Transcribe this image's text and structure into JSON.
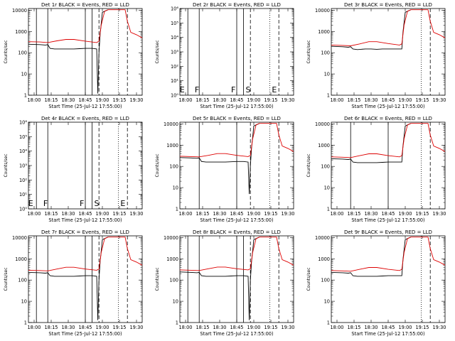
{
  "chart_data": [
    {
      "type": "line",
      "title": "Det 1r  BLACK = Events, RED = LLD",
      "xlabel": "Start Time (25-Jul-12 17:55:00)",
      "ylabel": "Counts/sec",
      "xlim": [
        "17:55",
        "19:35"
      ],
      "ylim": [
        1,
        12000
      ],
      "yscale": "log",
      "xticks": [
        "18:00",
        "18:15",
        "18:30",
        "18:45",
        "19:00",
        "19:15",
        "19:30"
      ],
      "yticks": [
        "1",
        "10",
        "100",
        "1000",
        "10000"
      ],
      "solid_vlines": [
        "18:02",
        "18:12",
        "18:45",
        "18:51"
      ],
      "dashed_vlines": [
        "18:57",
        "19:22"
      ],
      "dotted_vlines": [
        "19:14"
      ],
      "series": [
        {
          "name": "Events",
          "color": "#000000",
          "x": [
            "17:55",
            "18:05",
            "18:10",
            "18:12",
            "18:14",
            "18:18",
            "18:25",
            "18:30",
            "18:35",
            "18:40",
            "18:45",
            "18:51",
            "18:55",
            "18:56",
            "18:57",
            "18:58",
            "19:00",
            "19:05"
          ],
          "y": [
            250,
            240,
            230,
            240,
            160,
            150,
            150,
            150,
            150,
            155,
            160,
            160,
            150,
            1.2,
            100,
            700,
            8000,
            10500
          ]
        },
        {
          "name": "LLD",
          "color": "#dd0000",
          "x": [
            "17:55",
            "18:05",
            "18:12",
            "18:20",
            "18:28",
            "18:35",
            "18:45",
            "18:55",
            "18:57",
            "18:59",
            "19:02",
            "19:05",
            "19:20",
            "19:22",
            "19:25",
            "19:30",
            "19:35"
          ],
          "y": [
            330,
            320,
            300,
            360,
            420,
            420,
            350,
            300,
            350,
            2000,
            9000,
            10500,
            10500,
            3000,
            900,
            700,
            500
          ]
        }
      ],
      "markers": []
    },
    {
      "type": "line",
      "title": "Det 2r  BLACK = Events, RED = LLD",
      "xlabel": "Start Time (25-Jul-12 17:55:00)",
      "ylabel": "Counts/sec",
      "xlim": [
        "17:55",
        "19:35"
      ],
      "ylim": [
        1,
        1000000
      ],
      "yscale": "log",
      "xticks": [
        "18:00",
        "18:15",
        "18:30",
        "18:45",
        "19:00",
        "19:15",
        "19:30"
      ],
      "yticks": [
        "10⁰",
        "10¹",
        "10²",
        "10³",
        "10⁴",
        "10⁵",
        "10⁶"
      ],
      "solid_vlines": [
        "18:02",
        "18:12",
        "18:45",
        "18:51"
      ],
      "dashed_vlines": [
        "18:57",
        "19:22"
      ],
      "dotted_vlines": [
        "19:14"
      ],
      "series": [],
      "markers": [
        {
          "label": "E",
          "x": "17:57"
        },
        {
          "label": "F",
          "x": "18:10"
        },
        {
          "label": "F",
          "x": "18:42"
        },
        {
          "label": "S",
          "x": "18:55"
        },
        {
          "label": "E",
          "x": "19:18"
        }
      ]
    },
    {
      "type": "line",
      "title": "Det 3r  BLACK = Events, RED = LLD",
      "xlabel": "Start Time (25-Jul-12 17:55:00)",
      "ylabel": "Counts/sec",
      "xlim": [
        "17:55",
        "19:35"
      ],
      "ylim": [
        1,
        12000
      ],
      "yscale": "log",
      "xticks": [
        "18:00",
        "18:15",
        "18:30",
        "18:45",
        "19:00",
        "19:15",
        "19:30"
      ],
      "yticks": [
        "1",
        "10",
        "100",
        "1000",
        "10000"
      ],
      "solid_vlines": [],
      "dashed_vlines": [
        "19:22"
      ],
      "dotted_vlines": [
        "19:14"
      ],
      "series": [
        {
          "name": "Events",
          "color": "#000000",
          "x": [
            "17:55",
            "18:05",
            "18:10",
            "18:12",
            "18:14",
            "18:18",
            "18:25",
            "18:30",
            "18:35",
            "18:40",
            "18:45",
            "18:51",
            "18:55",
            "18:57",
            "18:58",
            "19:00",
            "19:05"
          ],
          "y": [
            200,
            190,
            180,
            190,
            150,
            140,
            150,
            150,
            145,
            150,
            150,
            150,
            150,
            150,
            900,
            8000,
            10500
          ]
        },
        {
          "name": "LLD",
          "color": "#dd0000",
          "x": [
            "17:55",
            "18:05",
            "18:12",
            "18:20",
            "18:28",
            "18:35",
            "18:45",
            "18:55",
            "18:57",
            "18:59",
            "19:02",
            "19:05",
            "19:20",
            "19:22",
            "19:25",
            "19:30",
            "19:35"
          ],
          "y": [
            230,
            220,
            210,
            260,
            330,
            330,
            270,
            230,
            260,
            2000,
            9000,
            10500,
            10500,
            3000,
            900,
            700,
            500
          ]
        }
      ],
      "markers": []
    },
    {
      "type": "line",
      "title": "Det 4r  BLACK = Events, RED = LLD",
      "xlabel": "Start Time (25-Jul-12 17:55:00)",
      "ylabel": "Counts/sec",
      "xlim": [
        "17:55",
        "19:35"
      ],
      "ylim": [
        1,
        1000000
      ],
      "yscale": "log",
      "xticks": [
        "18:00",
        "18:15",
        "18:30",
        "18:45",
        "19:00",
        "19:15",
        "19:30"
      ],
      "yticks": [
        "10⁰",
        "10¹",
        "10²",
        "10³",
        "10⁴",
        "10⁵",
        "10⁶"
      ],
      "solid_vlines": [
        "18:02",
        "18:12",
        "18:45",
        "18:51"
      ],
      "dashed_vlines": [
        "18:57",
        "19:22"
      ],
      "dotted_vlines": [
        "19:14"
      ],
      "series": [],
      "markers": [
        {
          "label": "E",
          "x": "17:57"
        },
        {
          "label": "F",
          "x": "18:10"
        },
        {
          "label": "F",
          "x": "18:42"
        },
        {
          "label": "S",
          "x": "18:55"
        },
        {
          "label": "E",
          "x": "19:18"
        }
      ]
    },
    {
      "type": "line",
      "title": "Det 5r  BLACK = Events, RED = LLD",
      "xlabel": "Start Time (25-Jul-12 17:55:00)",
      "ylabel": "Counts/sec",
      "xlim": [
        "17:55",
        "19:35"
      ],
      "ylim": [
        1,
        12000
      ],
      "yscale": "log",
      "xticks": [
        "18:00",
        "18:15",
        "18:30",
        "18:45",
        "19:00",
        "19:15",
        "19:30"
      ],
      "yticks": [
        "1",
        "10",
        "100",
        "1000",
        "10000"
      ],
      "solid_vlines": [
        "18:12",
        "18:45"
      ],
      "dashed_vlines": [
        "18:57",
        "19:22"
      ],
      "dotted_vlines": [
        "19:14"
      ],
      "series": [
        {
          "name": "Events",
          "color": "#000000",
          "x": [
            "17:55",
            "18:05",
            "18:10",
            "18:12",
            "18:14",
            "18:18",
            "18:25",
            "18:30",
            "18:35",
            "18:40",
            "18:45",
            "18:51",
            "18:55",
            "18:56",
            "18:57",
            "18:58",
            "19:00",
            "19:05"
          ],
          "y": [
            260,
            250,
            240,
            250,
            170,
            160,
            160,
            160,
            160,
            165,
            170,
            170,
            160,
            5,
            110,
            700,
            8000,
            10500
          ]
        },
        {
          "name": "LLD",
          "color": "#dd0000",
          "x": [
            "17:55",
            "18:05",
            "18:12",
            "18:20",
            "18:28",
            "18:35",
            "18:45",
            "18:55",
            "18:57",
            "18:59",
            "19:02",
            "19:05",
            "19:20",
            "19:22",
            "19:25",
            "19:30",
            "19:35"
          ],
          "y": [
            300,
            290,
            280,
            330,
            400,
            400,
            330,
            290,
            330,
            2000,
            9000,
            10500,
            10500,
            3000,
            900,
            700,
            500
          ]
        }
      ],
      "markers": []
    },
    {
      "type": "line",
      "title": "Det 6r  BLACK = Events, RED = LLD",
      "xlabel": "Start Time (25-Jul-12 17:55:00)",
      "ylabel": "Counts/sec",
      "xlim": [
        "17:55",
        "19:35"
      ],
      "ylim": [
        1,
        12000
      ],
      "yscale": "log",
      "xticks": [
        "18:00",
        "18:15",
        "18:30",
        "18:45",
        "19:00",
        "19:15",
        "19:30"
      ],
      "yticks": [
        "1",
        "10",
        "100",
        "1000",
        "10000"
      ],
      "solid_vlines": [
        "18:12",
        "18:45"
      ],
      "dashed_vlines": [
        "19:22"
      ],
      "dotted_vlines": [
        "19:14"
      ],
      "series": [
        {
          "name": "Events",
          "color": "#000000",
          "x": [
            "17:55",
            "18:05",
            "18:10",
            "18:12",
            "18:14",
            "18:18",
            "18:25",
            "18:30",
            "18:35",
            "18:40",
            "18:45",
            "18:51",
            "18:55",
            "18:57",
            "18:58",
            "19:00",
            "19:05"
          ],
          "y": [
            230,
            220,
            210,
            220,
            160,
            150,
            150,
            150,
            150,
            155,
            160,
            160,
            160,
            160,
            900,
            8000,
            10500
          ]
        },
        {
          "name": "LLD",
          "color": "#dd0000",
          "x": [
            "17:55",
            "18:05",
            "18:12",
            "18:20",
            "18:28",
            "18:35",
            "18:45",
            "18:55",
            "18:57",
            "18:59",
            "19:02",
            "19:05",
            "19:20",
            "19:22",
            "19:25",
            "19:30",
            "19:35"
          ],
          "y": [
            280,
            270,
            260,
            320,
            390,
            390,
            320,
            280,
            320,
            2000,
            9000,
            10500,
            10500,
            3000,
            900,
            700,
            500
          ]
        }
      ],
      "markers": []
    },
    {
      "type": "line",
      "title": "Det 7r  BLACK = Events, RED = LLD",
      "xlabel": "Start Time (25-Jul-12 17:55:00)",
      "ylabel": "Counts/sec",
      "xlim": [
        "17:55",
        "19:35"
      ],
      "ylim": [
        1,
        12000
      ],
      "yscale": "log",
      "xticks": [
        "18:00",
        "18:15",
        "18:30",
        "18:45",
        "19:00",
        "19:15",
        "19:30"
      ],
      "yticks": [
        "1",
        "10",
        "100",
        "1000",
        "10000"
      ],
      "solid_vlines": [
        "18:02",
        "18:12",
        "18:45",
        "18:51"
      ],
      "dashed_vlines": [
        "18:57",
        "19:22"
      ],
      "dotted_vlines": [
        "19:14"
      ],
      "series": [
        {
          "name": "Events",
          "color": "#000000",
          "x": [
            "17:55",
            "18:05",
            "18:10",
            "18:12",
            "18:14",
            "18:18",
            "18:25",
            "18:30",
            "18:35",
            "18:40",
            "18:45",
            "18:51",
            "18:55",
            "18:56",
            "18:57",
            "18:58",
            "19:00",
            "19:05"
          ],
          "y": [
            230,
            220,
            210,
            220,
            160,
            150,
            150,
            150,
            150,
            155,
            160,
            160,
            150,
            1.3,
            100,
            700,
            8000,
            10500
          ]
        },
        {
          "name": "LLD",
          "color": "#dd0000",
          "x": [
            "17:55",
            "18:05",
            "18:12",
            "18:20",
            "18:28",
            "18:35",
            "18:45",
            "18:55",
            "18:57",
            "18:59",
            "19:02",
            "19:05",
            "19:20",
            "19:22",
            "19:25",
            "19:30",
            "19:35"
          ],
          "y": [
            290,
            280,
            270,
            330,
            400,
            400,
            330,
            290,
            330,
            2000,
            9000,
            10500,
            10500,
            3000,
            900,
            700,
            500
          ]
        }
      ],
      "markers": []
    },
    {
      "type": "line",
      "title": "Det 8r  BLACK = Events, RED = LLD",
      "xlabel": "Start Time (25-Jul-12 17:55:00)",
      "ylabel": "Counts/sec",
      "xlim": [
        "17:55",
        "19:35"
      ],
      "ylim": [
        1,
        12000
      ],
      "yscale": "log",
      "xticks": [
        "18:00",
        "18:15",
        "18:30",
        "18:45",
        "19:00",
        "19:15",
        "19:30"
      ],
      "yticks": [
        "1",
        "10",
        "100",
        "1000",
        "10000"
      ],
      "solid_vlines": [
        "18:02",
        "18:12",
        "18:45",
        "18:51"
      ],
      "dashed_vlines": [
        "18:57",
        "19:22"
      ],
      "dotted_vlines": [
        "19:14"
      ],
      "series": [
        {
          "name": "Events",
          "color": "#000000",
          "x": [
            "17:55",
            "18:05",
            "18:10",
            "18:12",
            "18:14",
            "18:18",
            "18:25",
            "18:30",
            "18:35",
            "18:40",
            "18:45",
            "18:51",
            "18:55",
            "18:56",
            "18:57",
            "18:58",
            "19:00",
            "19:05"
          ],
          "y": [
            240,
            230,
            220,
            230,
            160,
            150,
            150,
            150,
            150,
            155,
            160,
            160,
            150,
            1.3,
            100,
            700,
            8000,
            10500
          ]
        },
        {
          "name": "LLD",
          "color": "#dd0000",
          "x": [
            "17:55",
            "18:05",
            "18:12",
            "18:20",
            "18:28",
            "18:35",
            "18:45",
            "18:55",
            "18:57",
            "18:59",
            "19:02",
            "19:05",
            "19:20",
            "19:22",
            "19:25",
            "19:30",
            "19:35"
          ],
          "y": [
            300,
            290,
            280,
            340,
            410,
            410,
            340,
            300,
            340,
            2000,
            9000,
            10500,
            10500,
            3000,
            900,
            700,
            500
          ]
        }
      ],
      "markers": []
    },
    {
      "type": "line",
      "title": "Det 9r  BLACK = Events, RED = LLD",
      "xlabel": "Start Time (25-Jul-12 17:55:00)",
      "ylabel": "Counts/sec",
      "xlim": [
        "17:55",
        "19:35"
      ],
      "ylim": [
        1,
        12000
      ],
      "yscale": "log",
      "xticks": [
        "18:00",
        "18:15",
        "18:30",
        "18:45",
        "19:00",
        "19:15",
        "19:30"
      ],
      "yticks": [
        "1",
        "10",
        "100",
        "1000",
        "10000"
      ],
      "solid_vlines": [],
      "dashed_vlines": [
        "19:22"
      ],
      "dotted_vlines": [
        "19:14"
      ],
      "series": [
        {
          "name": "Events",
          "color": "#000000",
          "x": [
            "17:55",
            "18:05",
            "18:10",
            "18:12",
            "18:14",
            "18:18",
            "18:25",
            "18:30",
            "18:35",
            "18:40",
            "18:45",
            "18:51",
            "18:55",
            "18:57",
            "18:58",
            "19:00",
            "19:05"
          ],
          "y": [
            230,
            220,
            210,
            220,
            160,
            150,
            150,
            150,
            150,
            155,
            160,
            160,
            160,
            160,
            900,
            8000,
            10500
          ]
        },
        {
          "name": "LLD",
          "color": "#dd0000",
          "x": [
            "17:55",
            "18:05",
            "18:12",
            "18:20",
            "18:28",
            "18:35",
            "18:45",
            "18:55",
            "18:57",
            "18:59",
            "19:02",
            "19:05",
            "19:20",
            "19:22",
            "19:25",
            "19:30",
            "19:35"
          ],
          "y": [
            280,
            270,
            260,
            320,
            390,
            390,
            320,
            280,
            320,
            2000,
            9000,
            10500,
            10500,
            3000,
            900,
            700,
            500
          ]
        }
      ],
      "markers": []
    }
  ]
}
